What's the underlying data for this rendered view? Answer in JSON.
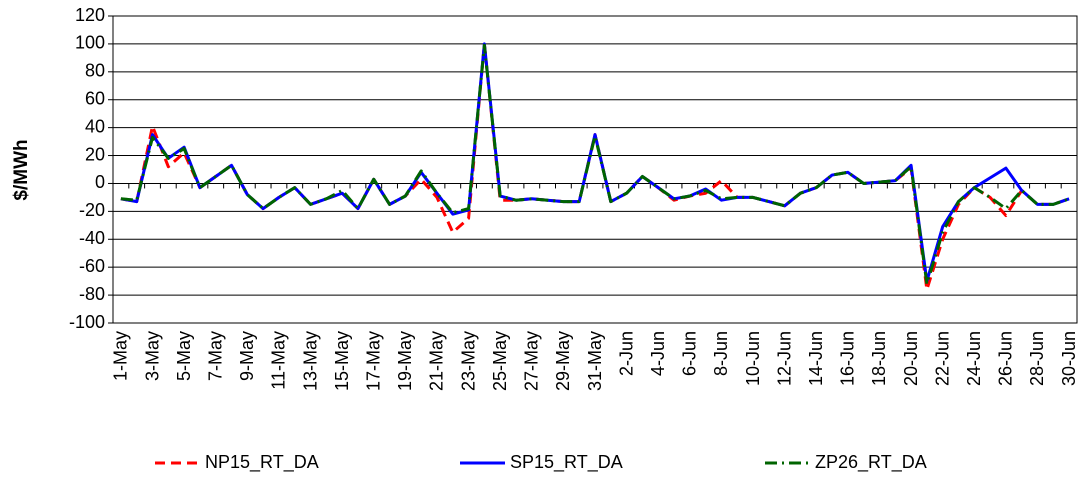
{
  "chart_data": {
    "type": "line",
    "ylabel": "$/MWh",
    "categories": [
      "1-May",
      null,
      "3-May",
      null,
      "5-May",
      null,
      "7-May",
      null,
      "9-May",
      null,
      "11-May",
      null,
      "13-May",
      null,
      "15-May",
      null,
      "17-May",
      null,
      "19-May",
      null,
      "21-May",
      null,
      "23-May",
      null,
      "25-May",
      null,
      "27-May",
      null,
      "29-May",
      null,
      "31-May",
      null,
      "2-Jun",
      null,
      "4-Jun",
      null,
      "6-Jun",
      null,
      "8-Jun",
      null,
      "10-Jun",
      null,
      "12-Jun",
      null,
      "14-Jun",
      null,
      "16-Jun",
      null,
      "18-Jun",
      null,
      "20-Jun",
      null,
      "22-Jun",
      null,
      "24-Jun",
      null,
      "26-Jun",
      null,
      "28-Jun",
      null,
      "30-Jun"
    ],
    "series": [
      {
        "name": "NP15_RT_DA",
        "color": "#ff0000",
        "dash": "dashed",
        "values": [
          -11,
          -13,
          41,
          12,
          22,
          -3,
          5,
          13,
          -8,
          -18,
          -10,
          -3,
          -15,
          -11,
          -7,
          -18,
          3,
          -15,
          -9,
          3,
          -10,
          -35,
          -25,
          100,
          -12,
          -12,
          -11,
          -12,
          -13,
          -13,
          35,
          -13,
          -7,
          5,
          -3,
          -12,
          -9,
          -7,
          2,
          -10,
          -10,
          -13,
          -16,
          -7,
          -3,
          6,
          8,
          0,
          1,
          2,
          11,
          -76,
          -40,
          -15,
          -3,
          -10,
          -23,
          -5,
          -15,
          -15,
          -11
        ]
      },
      {
        "name": "SP15_RT_DA",
        "color": "#0000ff",
        "dash": "solid",
        "values": [
          -11,
          -13,
          35,
          18,
          26,
          -3,
          5,
          13,
          -8,
          -18,
          -10,
          -3,
          -15,
          -11,
          -7,
          -18,
          3,
          -15,
          -9,
          8,
          -7,
          -22,
          -19,
          100,
          -9,
          -12,
          -11,
          -12,
          -13,
          -13,
          35,
          -13,
          -7,
          5,
          -3,
          -11,
          -9,
          -4,
          -12,
          -10,
          -10,
          -13,
          -16,
          -7,
          -3,
          6,
          8,
          0,
          1,
          2,
          13,
          -70,
          -31,
          -13,
          -3,
          4,
          11,
          -5,
          -15,
          -15,
          -11
        ]
      },
      {
        "name": "ZP26_RT_DA",
        "color": "#006400",
        "dash": "dashdot",
        "values": [
          -11,
          -12,
          33,
          18,
          25,
          -3,
          5,
          13,
          -8,
          -18,
          -10,
          -3,
          -15,
          -11,
          -5,
          -18,
          3,
          -15,
          -9,
          9,
          -7,
          -21,
          -18,
          99,
          -9,
          -12,
          -11,
          -12,
          -13,
          -13,
          34,
          -13,
          -7,
          5,
          -3,
          -11,
          -9,
          -5,
          -11,
          -10,
          -10,
          -13,
          -16,
          -7,
          -3,
          6,
          8,
          0,
          1,
          2,
          12,
          -72,
          -35,
          -13,
          -3,
          -10,
          -18,
          -5,
          -15,
          -15,
          -11
        ]
      }
    ],
    "ylim": [
      -100,
      120
    ],
    "yticks": [
      -100,
      -80,
      -60,
      -40,
      -20,
      0,
      20,
      40,
      60,
      80,
      100,
      120
    ],
    "grid": true,
    "legend": "bottom"
  }
}
